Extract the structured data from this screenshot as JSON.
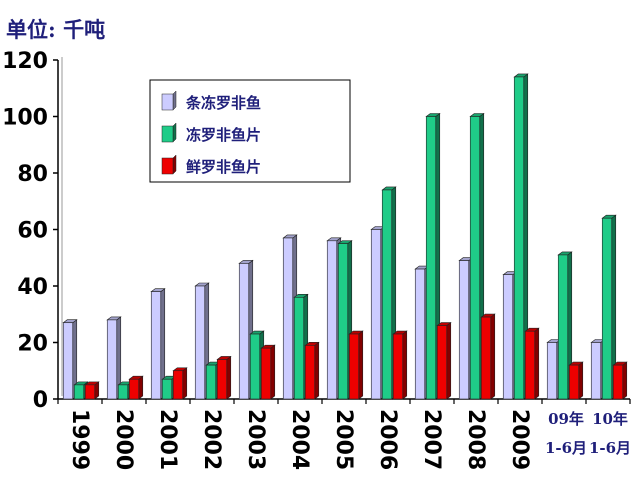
{
  "unit_label": "单位: 千吨",
  "chart_data": {
    "type": "bar",
    "categories": [
      "1999",
      "2000",
      "2001",
      "2002",
      "2003",
      "2004",
      "2005",
      "2006",
      "2007",
      "2008",
      "2009",
      "09年 1-6月",
      "10年 1-6月"
    ],
    "category_lines": [
      [
        "1999"
      ],
      [
        "2000"
      ],
      [
        "2001"
      ],
      [
        "2002"
      ],
      [
        "2003"
      ],
      [
        "2004"
      ],
      [
        "2005"
      ],
      [
        "2006"
      ],
      [
        "2007"
      ],
      [
        "2008"
      ],
      [
        "2009"
      ],
      [
        "09年",
        "1-6月"
      ],
      [
        "10年",
        "1-6月"
      ]
    ],
    "series": [
      {
        "name": "条冻罗非鱼",
        "color": "#ccccff",
        "values": [
          27,
          28,
          38,
          40,
          48,
          57,
          56,
          60,
          46,
          49,
          44,
          20,
          20
        ]
      },
      {
        "name": "冻罗非鱼片",
        "color": "#1fcc88",
        "values": [
          5,
          5,
          7,
          12,
          23,
          36,
          55,
          74,
          100,
          100,
          114,
          51,
          64
        ]
      },
      {
        "name": "鲜罗非鱼片",
        "color": "#ee0000",
        "values": [
          5,
          7,
          10,
          14,
          18,
          19,
          23,
          23,
          26,
          29,
          24,
          12,
          12
        ]
      }
    ],
    "yticks": [
      0,
      20,
      40,
      60,
      80,
      100,
      120
    ],
    "ylim": [
      0,
      120
    ],
    "xlabel": "",
    "ylabel": "",
    "title": "",
    "legend_position": "top-left-inside",
    "grid": false
  }
}
